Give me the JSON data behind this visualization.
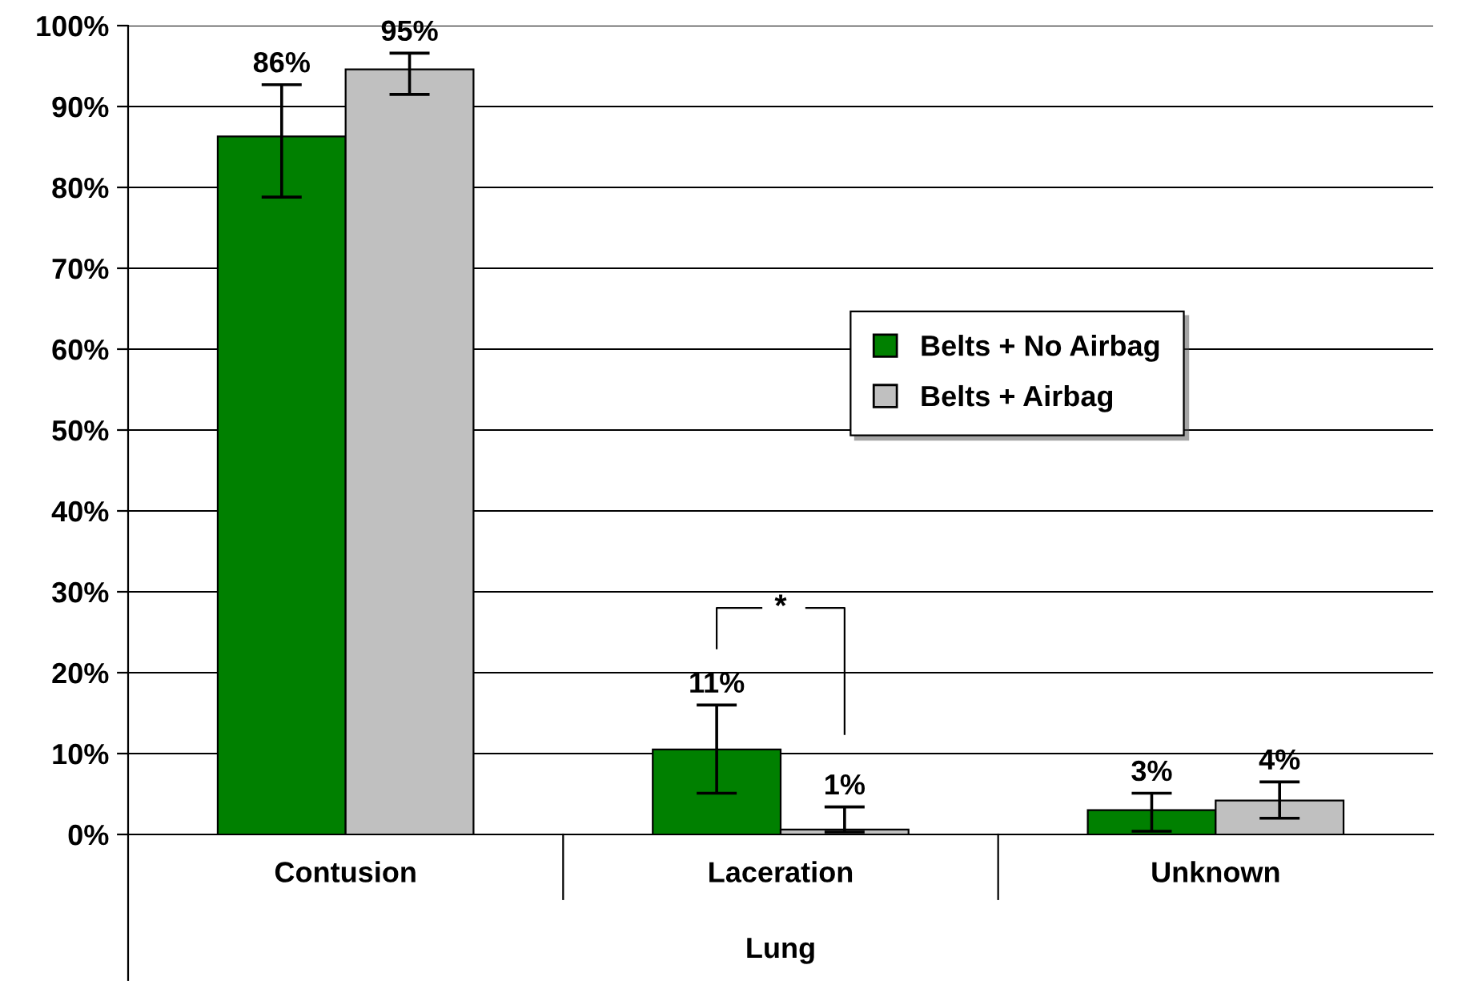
{
  "chart_data": {
    "type": "bar",
    "xlabel": "Lung",
    "categories": [
      "Contusion",
      "Laceration",
      "Unknown"
    ],
    "series": [
      {
        "name": "Belts + No Airbag",
        "color": "#008000",
        "values": [
          86.3,
          10.5,
          3.0
        ],
        "errors": [
          [
            78.8,
            92.7
          ],
          [
            5.1,
            16.0
          ],
          [
            0.4,
            5.1
          ]
        ],
        "value_labels": [
          "86%",
          "11%",
          "3%"
        ]
      },
      {
        "name": "Belts + Airbag",
        "color": "#c0c0c0",
        "values": [
          94.6,
          0.6,
          4.2
        ],
        "errors": [
          [
            91.5,
            96.6
          ],
          [
            0.3,
            3.4
          ],
          [
            2.0,
            6.5
          ]
        ],
        "value_labels": [
          "95%",
          "1%",
          "4%"
        ]
      }
    ],
    "ylim": [
      0,
      100
    ],
    "yticks": [
      {
        "value": 0,
        "label": "0%"
      },
      {
        "value": 10,
        "label": "10%"
      },
      {
        "value": 20,
        "label": "20%"
      },
      {
        "value": 30,
        "label": "30%"
      },
      {
        "value": 40,
        "label": "40%"
      },
      {
        "value": 50,
        "label": "50%"
      },
      {
        "value": 60,
        "label": "60%"
      },
      {
        "value": 70,
        "label": "70%"
      },
      {
        "value": 80,
        "label": "80%"
      },
      {
        "value": 90,
        "label": "90%"
      },
      {
        "value": 100,
        "label": "100%"
      }
    ],
    "grid": "y",
    "legend": "right",
    "annotations": [
      "*"
    ]
  }
}
